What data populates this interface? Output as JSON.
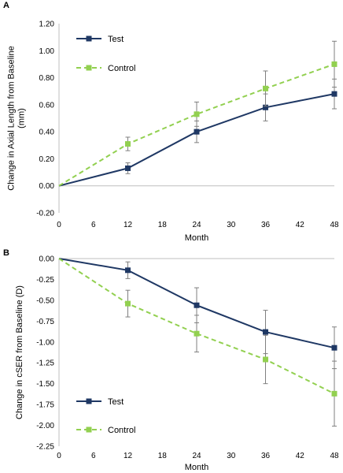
{
  "chart_data": [
    {
      "panel": "A",
      "type": "line",
      "xlabel": "Month",
      "ylabel": "Change in Axial Length from Baseline (mm)",
      "ylabel_lines": [
        "Change in Axial Length from Baseline",
        "(mm)"
      ],
      "xlim": [
        0,
        48
      ],
      "ylim": [
        -0.2,
        1.2
      ],
      "x_ticks": [
        0,
        6,
        12,
        18,
        24,
        30,
        36,
        42,
        48
      ],
      "y_ticks": [
        -0.2,
        0.0,
        0.2,
        0.4,
        0.6,
        0.8,
        1.0,
        1.2
      ],
      "y_tick_labels": [
        "-0.20",
        "0.00",
        "0.20",
        "0.40",
        "0.60",
        "0.80",
        "1.00",
        "1.20"
      ],
      "grid": false,
      "legend_position": "top-left",
      "series": [
        {
          "name": "Test",
          "color": "#1f3864",
          "style": "solid",
          "x": [
            0,
            12,
            24,
            36,
            48
          ],
          "y": [
            0.0,
            0.13,
            0.4,
            0.58,
            0.68
          ],
          "err": [
            0,
            0.04,
            0.08,
            0.1,
            0.11
          ]
        },
        {
          "name": "Control",
          "color": "#92d050",
          "style": "dashed",
          "x": [
            0,
            12,
            24,
            36,
            48
          ],
          "y": [
            0.0,
            0.31,
            0.53,
            0.72,
            0.9
          ],
          "err": [
            0,
            0.05,
            0.09,
            0.13,
            0.17
          ]
        }
      ]
    },
    {
      "panel": "B",
      "type": "line",
      "xlabel": "Month",
      "ylabel": "Change in cSER from Baseline (D)",
      "ylabel_lines": [
        "Change in cSER from Baseline (D)"
      ],
      "xlim": [
        0,
        48
      ],
      "ylim": [
        -2.25,
        0.0
      ],
      "x_ticks": [
        0,
        6,
        12,
        18,
        24,
        30,
        36,
        42,
        48
      ],
      "y_ticks": [
        0.0,
        -0.25,
        -0.5,
        -0.75,
        -1.0,
        -1.25,
        -1.5,
        -1.75,
        -2.0,
        -2.25
      ],
      "y_tick_labels": [
        "0.00",
        "-0.25",
        "-0.50",
        "-0.75",
        "-1.00",
        "-1.25",
        "-1.50",
        "-1.75",
        "-2.00",
        "-2.25"
      ],
      "grid": false,
      "legend_position": "bottom-left",
      "series": [
        {
          "name": "Test",
          "color": "#1f3864",
          "style": "solid",
          "x": [
            0,
            12,
            24,
            36,
            48
          ],
          "y": [
            0.0,
            -0.14,
            -0.56,
            -0.88,
            -1.07
          ],
          "err": [
            0,
            0.1,
            0.21,
            0.26,
            0.25
          ]
        },
        {
          "name": "Control",
          "color": "#92d050",
          "style": "dashed",
          "x": [
            0,
            12,
            24,
            36,
            48
          ],
          "y": [
            0.0,
            -0.54,
            -0.9,
            -1.21,
            -1.62
          ],
          "err": [
            0,
            0.16,
            0.22,
            0.29,
            0.39
          ]
        }
      ]
    }
  ]
}
